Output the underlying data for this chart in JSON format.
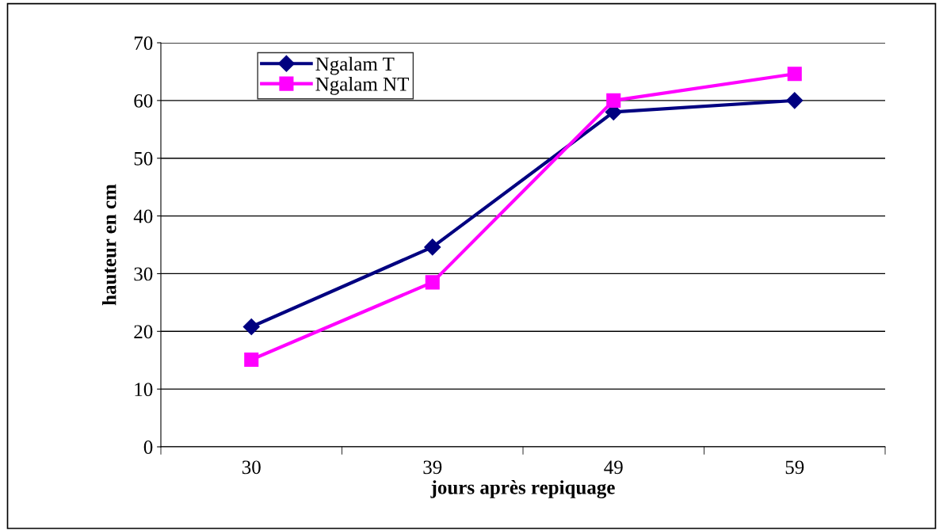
{
  "chart_data": {
    "type": "line",
    "xlabel": "jours après repiquage",
    "ylabel": "hauteur en cm",
    "categories": [
      "30",
      "39",
      "49",
      "59"
    ],
    "series": [
      {
        "name": "Ngalam T",
        "color": "#000080",
        "marker": "diamond",
        "values": [
          20.8,
          34.6,
          58.0,
          60.0
        ]
      },
      {
        "name": "Ngalam NT",
        "color": "#ff00ff",
        "marker": "square",
        "values": [
          15.1,
          28.5,
          60.0,
          64.6
        ]
      }
    ],
    "ylim": [
      0,
      70
    ],
    "yticks": [
      0,
      10,
      20,
      30,
      40,
      50,
      60,
      70
    ],
    "grid": "y",
    "legend": "top left",
    "line_style": "solid"
  }
}
